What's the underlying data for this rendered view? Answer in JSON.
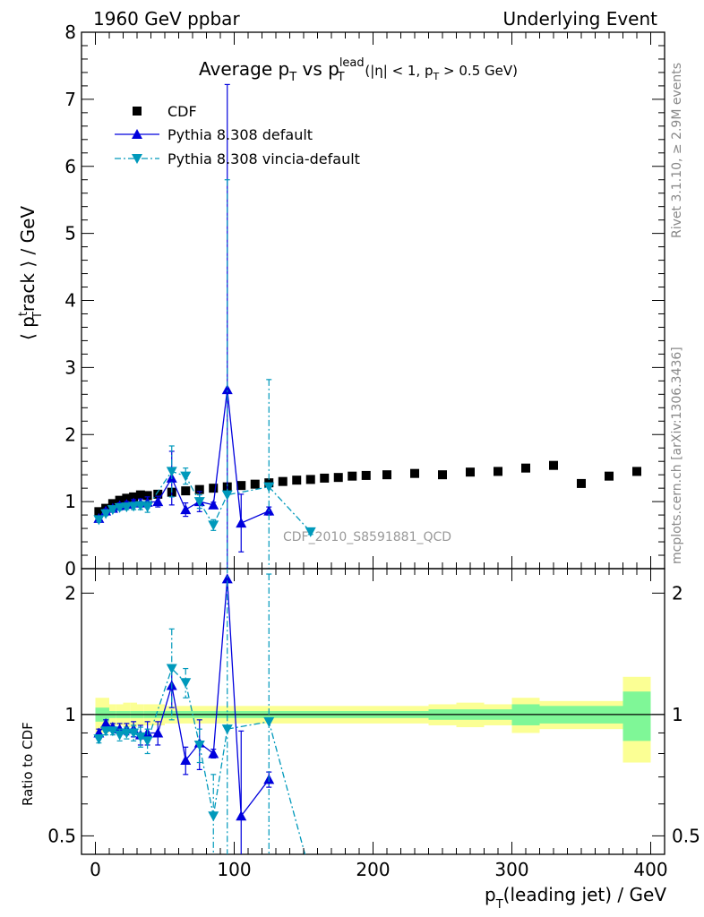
{
  "header": {
    "left": "1960 GeV ppbar",
    "right": "Underlying Event"
  },
  "side_text": {
    "rivet": "Rivet 3.1.10, ≥ 2.9M events",
    "mcplots": "mcplots.cern.ch [arXiv:1306.3436]"
  },
  "chart_data": {
    "type": "scatter",
    "title_parts": {
      "main": "Average p",
      "sub1": "T",
      "vs": " vs p",
      "sup": "lead",
      "sub2": "T",
      "cut1": " (|η| < 1, p",
      "cut_sub": "T",
      "cut2": " > 0.5 GeV)"
    },
    "analysis_label": "CDF_2010_S8591881_QCD",
    "ylabel_main": {
      "pre": "⟨ p",
      "sup": "t",
      "sub": "T",
      "post": "rack ⟩ / GeV"
    },
    "ylabel_ratio": "Ratio to CDF",
    "xlabel": {
      "pre": "p",
      "sub": "T",
      "post": "(leading jet) / GeV"
    },
    "xlim": [
      -10,
      410
    ],
    "ylim_main": [
      0,
      8
    ],
    "ylim_ratio": [
      0.45,
      2.3
    ],
    "x_ticks": [
      "0",
      "100",
      "200",
      "300",
      "400"
    ],
    "y_ticks_main": [
      "0",
      "1",
      "2",
      "3",
      "4",
      "5",
      "6",
      "7",
      "8"
    ],
    "y_ticks_ratio": [
      "0.5",
      "1",
      "2"
    ],
    "legend_position": "top-left",
    "series": [
      {
        "name": "CDF",
        "color": "#000000",
        "marker": "square",
        "x": [
          2.5,
          7.5,
          12.5,
          17.5,
          22.5,
          27.5,
          32.5,
          37.5,
          45,
          55,
          65,
          75,
          85,
          95,
          105,
          115,
          125,
          135,
          145,
          155,
          165,
          175,
          185,
          195,
          210,
          230,
          250,
          270,
          290,
          310,
          330,
          350,
          370,
          390
        ],
        "y": [
          0.85,
          0.9,
          0.97,
          1.02,
          1.05,
          1.07,
          1.1,
          1.09,
          1.11,
          1.14,
          1.16,
          1.18,
          1.2,
          1.22,
          1.24,
          1.26,
          1.28,
          1.3,
          1.32,
          1.33,
          1.35,
          1.36,
          1.38,
          1.39,
          1.4,
          1.42,
          1.4,
          1.44,
          1.45,
          1.5,
          1.54,
          1.27,
          1.38,
          1.45
        ]
      },
      {
        "name": "Pythia 8.308 default",
        "color": "#0000dd",
        "marker": "triangle-up",
        "line": "solid",
        "x": [
          2.5,
          7.5,
          12.5,
          17.5,
          22.5,
          27.5,
          32.5,
          37.5,
          45,
          55,
          65,
          75,
          85,
          95,
          105,
          125
        ],
        "y": [
          0.75,
          0.86,
          0.9,
          0.94,
          0.96,
          0.98,
          0.98,
          0.99,
          1.0,
          1.35,
          0.88,
          1.0,
          0.95,
          2.67,
          0.68,
          0.86
        ],
        "yerr": [
          0.03,
          0.03,
          0.03,
          0.04,
          0.04,
          0.05,
          0.06,
          0.08,
          0.08,
          0.4,
          0.1,
          0.15,
          0.04,
          4.55,
          0.43,
          0.06
        ],
        "ratio": [
          0.9,
          0.95,
          0.93,
          0.92,
          0.92,
          0.92,
          0.89,
          0.9,
          0.9,
          1.18,
          0.77,
          0.85,
          0.8,
          2.17,
          0.56,
          0.69
        ],
        "ratio_err": [
          0.02,
          0.02,
          0.02,
          0.03,
          0.03,
          0.04,
          0.05,
          0.06,
          0.06,
          0.14,
          0.06,
          0.12,
          0.02,
          0.0,
          0.35,
          0.03
        ]
      },
      {
        "name": "Pythia 8.308 vincia-default",
        "color": "#0099bb",
        "marker": "triangle-down",
        "line": "dashdot",
        "x": [
          2.5,
          7.5,
          12.5,
          17.5,
          22.5,
          27.5,
          32.5,
          37.5,
          55,
          65,
          75,
          85,
          95,
          125,
          155
        ],
        "y": [
          0.73,
          0.82,
          0.88,
          0.91,
          0.92,
          0.93,
          0.94,
          0.92,
          1.45,
          1.38,
          1.0,
          0.65,
          1.1,
          1.22,
          0.55
        ],
        "yerr": [
          0.03,
          0.03,
          0.03,
          0.04,
          0.04,
          0.05,
          0.06,
          0.08,
          0.38,
          0.12,
          0.1,
          0.08,
          4.7,
          1.6,
          0.04
        ],
        "ratio": [
          0.87,
          0.91,
          0.91,
          0.89,
          0.9,
          0.9,
          0.88,
          0.86,
          1.3,
          1.2,
          0.84,
          0.56,
          0.92,
          0.96,
          0.4
        ],
        "ratio_err": [
          0.02,
          0.02,
          0.02,
          0.03,
          0.03,
          0.04,
          0.05,
          0.06,
          0.33,
          0.1,
          0.08,
          0.15,
          1.4,
          1.27,
          0.03
        ]
      }
    ],
    "band_colors": {
      "stat": "#7ff797",
      "total": "#fbff94"
    },
    "bands": {
      "x": [
        0,
        10,
        15,
        20,
        25,
        30,
        35,
        40,
        50,
        60,
        70,
        80,
        90,
        100,
        110,
        120,
        130,
        140,
        150,
        160,
        170,
        180,
        190,
        200,
        220,
        240,
        260,
        280,
        300,
        320,
        340,
        360,
        380,
        400
      ],
      "total": [
        0.1,
        0.06,
        0.06,
        0.07,
        0.07,
        0.06,
        0.06,
        0.06,
        0.05,
        0.05,
        0.05,
        0.05,
        0.05,
        0.05,
        0.05,
        0.05,
        0.05,
        0.05,
        0.05,
        0.05,
        0.05,
        0.05,
        0.05,
        0.05,
        0.05,
        0.06,
        0.07,
        0.06,
        0.1,
        0.08,
        0.08,
        0.08,
        0.24
      ],
      "stat": [
        0.04,
        0.02,
        0.02,
        0.02,
        0.02,
        0.02,
        0.02,
        0.02,
        0.02,
        0.02,
        0.02,
        0.02,
        0.02,
        0.02,
        0.02,
        0.02,
        0.02,
        0.02,
        0.02,
        0.02,
        0.02,
        0.02,
        0.02,
        0.02,
        0.02,
        0.03,
        0.03,
        0.03,
        0.06,
        0.05,
        0.05,
        0.05,
        0.14
      ]
    }
  }
}
